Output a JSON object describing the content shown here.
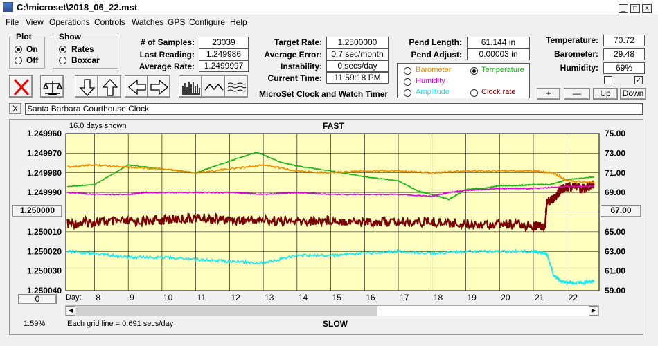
{
  "window": {
    "title": "C:\\microset\\2018_06_22.mst",
    "controls": [
      "_",
      "□",
      "X"
    ]
  },
  "menu": [
    "File",
    "View",
    "Operations",
    "Controls",
    "Watches",
    "GPS",
    "Configure",
    "Help"
  ],
  "plot_group": {
    "title": "Plot",
    "on": "On",
    "off": "Off"
  },
  "show_group": {
    "title": "Show",
    "rates": "Rates",
    "boxcar": "Boxcar"
  },
  "stats": {
    "samples_label": "# of Samples:",
    "samples": "23039",
    "last_label": "Last Reading:",
    "last": "1.249986",
    "avg_label": "Average Rate:",
    "avg": "1.2499997",
    "target_label": "Target Rate:",
    "target": "1.2500000",
    "error_label": "Average Error:",
    "error": "0.7 sec/month",
    "instab_label": "Instability:",
    "instab": "0 secs/day",
    "time_label": "Current Time:",
    "time": "11:59:18 PM",
    "pend_len_label": "Pend Length:",
    "pend_len": "61.144 in",
    "pend_adj_label": "Pend Adjust:",
    "pend_adj": "0.00003 in",
    "temp_label": "Temperature:",
    "temp": "70.72",
    "baro_label": "Barometer:",
    "baro": "29.48",
    "hum_label": "Humidity:",
    "hum": "69%"
  },
  "app_caption": "MicroSet Clock and Watch Timer",
  "sensors": {
    "barometer": "Barometer",
    "temperature": "Temperature",
    "humidity": "Humidity",
    "amplitude": "Amplitude",
    "clock_rate": "Clock rate"
  },
  "sensor_buttons": [
    "+",
    "—",
    "Up",
    "Down"
  ],
  "clock_name": "Santa Barbara Courthouse Clock",
  "close_label": "X",
  "plot": {
    "days_shown": "16.0 days shown",
    "fast": "FAST",
    "slow": "SLOW",
    "grid_note": "Each grid line = 0.691 secs/day",
    "percent": "1.59%",
    "day_label": "Day:",
    "left_button": "1.250000",
    "right_button": "67.00",
    "zero_button": "0"
  },
  "colors": {
    "plot_bg": "#ffffc0",
    "barometer": "#f08c00",
    "temperature": "#18b418",
    "humidity": "#e000e0",
    "clock_rate": "#7a0000",
    "amplitude": "#14e8f0"
  },
  "chart_data": {
    "type": "line",
    "title": "",
    "xlabel": "Day:",
    "x_ticks": [
      "8",
      "9",
      "10",
      "11",
      "12",
      "13",
      "14",
      "15",
      "16",
      "17",
      "18",
      "19",
      "20",
      "21",
      "22"
    ],
    "xlim": [
      7.15,
      22.95
    ],
    "left_ticks": [
      "1.249960",
      "1.249970",
      "1.249980",
      "1.249990",
      "1.250000",
      "1.250010",
      "1.250020",
      "1.250030",
      "1.250040"
    ],
    "right_ticks": [
      "75.00",
      "73.00",
      "71.00",
      "69.00",
      "67.00",
      "65.00",
      "63.00",
      "61.00",
      "59.00"
    ],
    "ylim_rate": [
      1.24996,
      1.25004
    ],
    "ylim_right": [
      59,
      75
    ],
    "series": [
      {
        "name": "Clock rate",
        "color": "#7a0000",
        "axis": "left",
        "x": [
          7.2,
          8,
          9,
          10,
          11,
          12,
          13,
          14,
          15,
          16,
          17,
          18,
          19,
          20,
          21,
          21.35,
          21.4,
          21.6,
          21.8,
          22,
          22.5,
          22.8
        ],
        "y": [
          1.250006,
          1.250005,
          1.250005,
          1.250004,
          1.250003,
          1.250004,
          1.250004,
          1.250005,
          1.250004,
          1.250005,
          1.250005,
          1.250005,
          1.250006,
          1.250006,
          1.250007,
          1.250007,
          1.249995,
          1.249993,
          1.249989,
          1.249987,
          1.249988,
          1.249986
        ]
      },
      {
        "name": "Temperature",
        "color": "#18b418",
        "axis": "right",
        "x": [
          7.2,
          8,
          9,
          10,
          11,
          12,
          12.8,
          13.5,
          14,
          15,
          16,
          17,
          17.6,
          18,
          18.5,
          19,
          19.5,
          20,
          20.5,
          21,
          21.5,
          22,
          22.8
        ],
        "y": [
          69.6,
          69.8,
          71.8,
          71.4,
          71.0,
          72.2,
          73.1,
          72.1,
          71.7,
          71.2,
          70.6,
          70.2,
          69.1,
          68.8,
          68.3,
          69.3,
          69.4,
          69.7,
          69.7,
          69.8,
          69.8,
          70.3,
          70.6
        ]
      },
      {
        "name": "Barometer",
        "color": "#f08c00",
        "axis": "left",
        "x": [
          7.2,
          8,
          9,
          10,
          11,
          12,
          13,
          14,
          15,
          16,
          17,
          18,
          19,
          20,
          21,
          21.6,
          22,
          22.8
        ],
        "y": [
          1.249977,
          1.249976,
          1.249977,
          1.249978,
          1.24998,
          1.249978,
          1.249976,
          1.249979,
          1.24998,
          1.249979,
          1.249979,
          1.24998,
          1.249979,
          1.249979,
          1.249979,
          1.24998,
          1.249984,
          1.249985
        ]
      },
      {
        "name": "Humidity",
        "color": "#e000e0",
        "axis": "left",
        "x": [
          7.2,
          8,
          9,
          9.5,
          10,
          11,
          12,
          13,
          14,
          15,
          16,
          17,
          18,
          18.5,
          19,
          20,
          21,
          22,
          22.8
        ],
        "y": [
          1.24999,
          1.249991,
          1.249991,
          1.24999,
          1.24999,
          1.24999,
          1.24999,
          1.249991,
          1.24999,
          1.249991,
          1.249991,
          1.249991,
          1.249992,
          1.24999,
          1.249989,
          1.249988,
          1.249988,
          1.249987,
          1.249987
        ]
      },
      {
        "name": "Amplitude",
        "color": "#14e8f0",
        "axis": "left",
        "x": [
          7.2,
          8,
          9,
          10,
          11,
          12,
          13,
          14,
          15,
          16,
          17,
          18,
          19,
          20,
          21,
          21.4,
          21.6,
          21.8,
          22,
          22.5,
          22.8
        ],
        "y": [
          1.25002,
          1.250021,
          1.250023,
          1.250023,
          1.250024,
          1.250025,
          1.250026,
          1.250022,
          1.250022,
          1.250021,
          1.25002,
          1.250021,
          1.25002,
          1.25002,
          1.25002,
          1.250021,
          1.250032,
          1.250035,
          1.250036,
          1.250036,
          1.250035
        ]
      }
    ]
  }
}
